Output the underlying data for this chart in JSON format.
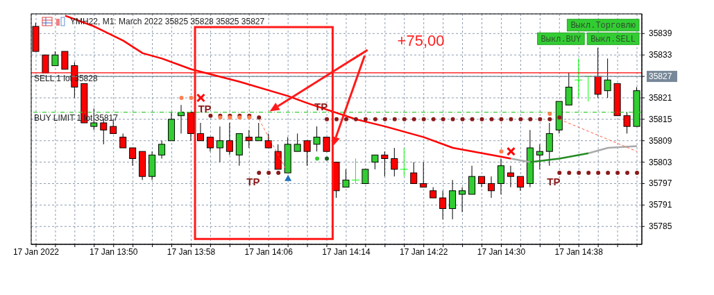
{
  "chart_data": {
    "type": "candlestick",
    "title": "YMH22, M1: March 2022 35825 35828 35825 35827",
    "x": [
      "2022-01-17T13:42",
      "2022-01-17T13:43",
      "2022-01-17T13:44",
      "2022-01-17T13:45",
      "2022-01-17T13:46",
      "2022-01-17T13:47",
      "2022-01-17T13:48",
      "2022-01-17T13:49",
      "2022-01-17T13:50",
      "2022-01-17T13:51",
      "2022-01-17T13:52",
      "2022-01-17T13:53",
      "2022-01-17T13:54",
      "2022-01-17T13:55",
      "2022-01-17T13:56",
      "2022-01-17T13:57",
      "2022-01-17T13:58",
      "2022-01-17T13:59",
      "2022-01-17T14:00",
      "2022-01-17T14:01",
      "2022-01-17T14:02",
      "2022-01-17T14:03",
      "2022-01-17T14:04",
      "2022-01-17T14:05",
      "2022-01-17T14:06",
      "2022-01-17T14:07",
      "2022-01-17T14:08",
      "2022-01-17T14:09",
      "2022-01-17T14:10",
      "2022-01-17T14:11",
      "2022-01-17T14:12",
      "2022-01-17T14:13",
      "2022-01-17T14:14",
      "2022-01-17T14:15",
      "2022-01-17T14:16",
      "2022-01-17T14:17",
      "2022-01-17T14:18",
      "2022-01-17T14:19",
      "2022-01-17T14:20",
      "2022-01-17T14:21",
      "2022-01-17T14:22",
      "2022-01-17T14:23",
      "2022-01-17T14:24",
      "2022-01-17T14:25",
      "2022-01-17T14:26",
      "2022-01-17T14:27",
      "2022-01-17T14:28",
      "2022-01-17T14:29",
      "2022-01-17T14:30",
      "2022-01-17T14:31",
      "2022-01-17T14:32",
      "2022-01-17T14:33",
      "2022-01-17T14:34",
      "2022-01-17T14:35",
      "2022-01-17T14:36",
      "2022-01-17T14:37",
      "2022-01-17T14:38",
      "2022-01-17T14:39",
      "2022-01-17T14:40",
      "2022-01-17T14:41",
      "2022-01-17T14:42",
      "2022-01-17T14:43",
      "2022-01-17T14:44"
    ],
    "ohlc": [
      [
        35841,
        35842,
        35834,
        35834
      ],
      [
        35833,
        35833,
        35828,
        35828
      ],
      [
        35830,
        35834,
        35830,
        35833
      ],
      [
        35834,
        35834,
        35829,
        35829
      ],
      [
        35830,
        35831,
        35821,
        35824
      ],
      [
        35825,
        35825,
        35814,
        35814
      ],
      [
        35813,
        35818,
        35812,
        35814
      ],
      [
        35814,
        35815,
        35808,
        35812
      ],
      [
        35813,
        35815,
        35811,
        35811
      ],
      [
        35810,
        35811,
        35807,
        35807
      ],
      [
        35807,
        35807,
        35802,
        35804
      ],
      [
        35806,
        35806,
        35798,
        35799
      ],
      [
        35799,
        35806,
        35798,
        35805
      ],
      [
        35805,
        35809,
        35804,
        35808
      ],
      [
        35809,
        35817,
        35809,
        35815
      ],
      [
        35816,
        35819,
        35811,
        35817
      ],
      [
        35817,
        35817,
        35809,
        35811
      ],
      [
        35811,
        35814,
        35809,
        35809
      ],
      [
        35810,
        35810,
        35806,
        35807
      ],
      [
        35807,
        35813,
        35803,
        35809
      ],
      [
        35809,
        35814,
        35805,
        35806
      ],
      [
        35805,
        35811,
        35802,
        35811
      ],
      [
        35810,
        35812,
        35807,
        35809
      ],
      [
        35809,
        35814,
        35809,
        35810
      ],
      [
        35809,
        35811,
        35807,
        35807
      ],
      [
        35806,
        35808,
        35801,
        35801
      ],
      [
        35800,
        35810,
        35800,
        35808
      ],
      [
        35806,
        35811,
        35806,
        35808
      ],
      [
        35809,
        35809,
        35802,
        35806
      ],
      [
        35808,
        35813,
        35806,
        35810
      ],
      [
        35810,
        35810,
        35806,
        35806
      ],
      [
        35803,
        35803,
        35793,
        35795
      ],
      [
        35796,
        35801,
        35796,
        35798
      ],
      [
        35798,
        35804,
        35797,
        35798
      ],
      [
        35797,
        35801,
        35797,
        35801
      ],
      [
        35803,
        35805,
        35801,
        35805
      ],
      [
        35805,
        35806,
        35799,
        35804
      ],
      [
        35804,
        35807,
        35799,
        35801
      ],
      [
        35801,
        35807,
        35799,
        35801
      ],
      [
        35800,
        35803,
        35797,
        35797
      ],
      [
        35797,
        35803,
        35796,
        35796
      ],
      [
        35795,
        35796,
        35793,
        35793
      ],
      [
        35793,
        35795,
        35787,
        35790
      ],
      [
        35790,
        35798,
        35787,
        35795
      ],
      [
        35794,
        35796,
        35789,
        35795
      ],
      [
        35794,
        35802,
        35794,
        35799
      ],
      [
        35799,
        35799,
        35796,
        35797
      ],
      [
        35797,
        35799,
        35793,
        35795
      ],
      [
        35797,
        35804,
        35794,
        35802
      ],
      [
        35800,
        35802,
        35796,
        35799
      ],
      [
        35799,
        35799,
        35795,
        35796
      ],
      [
        35797,
        35812,
        35796,
        35807
      ],
      [
        35805,
        35808,
        35801,
        35806
      ],
      [
        35806,
        35814,
        35802,
        35811
      ],
      [
        35812,
        35820,
        35811,
        35820
      ],
      [
        35819,
        35828,
        35819,
        35824
      ],
      [
        35826,
        35832,
        35821,
        35826
      ],
      [
        35827,
        35827,
        35820,
        35827
      ],
      [
        35827,
        35835,
        35821,
        35822
      ],
      [
        35823,
        35832,
        35821,
        35826
      ],
      [
        35825,
        35825,
        35816,
        35816
      ],
      [
        35816,
        35817,
        35811,
        35813
      ],
      [
        35813,
        35824,
        35813,
        35823
      ]
    ],
    "colors": [
      "#ff0000",
      "#ff0000",
      "#32cd32",
      "#ff0000",
      "#ff0000",
      "#ff0000",
      "#32cd32",
      "#ff0000",
      "#ff0000",
      "#ff0000",
      "#ff0000",
      "#ff0000",
      "#32cd32",
      "#32cd32",
      "#32cd32",
      "#32cd32",
      "#ff0000",
      "#ff0000",
      "#ff0000",
      "#32cd32",
      "#ff0000",
      "#32cd32",
      "#ff0000",
      "#32cd32",
      "#ff0000",
      "#ff0000",
      "#32cd32",
      "#32cd32",
      "#ff0000",
      "#32cd32",
      "#ff0000",
      "#ff0000",
      "#32cd32",
      "#00ff00",
      "#32cd32",
      "#32cd32",
      "#ff0000",
      "#ff0000",
      "#00ff00",
      "#ff0000",
      "#ff0000",
      "#ff0000",
      "#ff0000",
      "#32cd32",
      "#32cd32",
      "#32cd32",
      "#ff0000",
      "#ff0000",
      "#32cd32",
      "#ff0000",
      "#ff0000",
      "#32cd32",
      "#32cd32",
      "#32cd32",
      "#32cd32",
      "#32cd32",
      "#00ff00",
      "#00ff00",
      "#ff0000",
      "#32cd32",
      "#ff0000",
      "#ff0000",
      "#32cd32"
    ],
    "series": [
      {
        "type": "line",
        "color": "#ff0000",
        "line_style": "solid",
        "x": [
          "2022-01-17T13:45",
          "2022-01-17T13:48",
          "2022-01-17T13:51",
          "2022-01-17T13:53",
          "2022-01-17T13:55",
          "2022-01-17T13:58",
          "2022-01-17T14:03",
          "2022-01-17T14:08",
          "2022-01-17T14:10",
          "2022-01-17T14:15",
          "2022-01-17T14:18",
          "2022-01-17T14:22",
          "2022-01-17T14:25",
          "2022-01-17T14:29",
          "2022-01-17T14:31"
        ],
        "values": [
          35844,
          35841,
          35837,
          35833.5,
          35832,
          35829,
          35825.5,
          35821.5,
          35819.5,
          35815,
          35813,
          35810,
          35807,
          35805,
          35804
        ]
      },
      {
        "type": "line",
        "color": "#a9a9a9",
        "line_style": "solid",
        "x": [
          "2022-01-17T14:31",
          "2022-01-17T14:33"
        ],
        "values": [
          35804,
          35803
        ]
      },
      {
        "type": "line",
        "color": "#228b22",
        "line_style": "solid",
        "x": [
          "2022-01-17T14:33",
          "2022-01-17T14:36",
          "2022-01-17T14:39"
        ],
        "values": [
          35803,
          35804,
          35805.5
        ]
      },
      {
        "type": "line",
        "color": "#a9a9a9",
        "line_style": "solid",
        "x": [
          "2022-01-17T14:39",
          "2022-01-17T14:41",
          "2022-01-17T14:44"
        ],
        "values": [
          35805.5,
          35807,
          35807.5
        ]
      },
      {
        "type": "line",
        "color": "#ff6347",
        "line_style": "dashed",
        "x": [
          "2022-01-17T14:05",
          "2022-01-17T14:08"
        ],
        "values": [
          35815,
          35800
        ]
      },
      {
        "type": "line",
        "color": "#ff6347",
        "line_style": "dashed",
        "x": [
          "2022-01-17T14:36",
          "2022-01-17T14:44"
        ],
        "values": [
          35815,
          35806
        ]
      },
      {
        "type": "scatter",
        "color": "#8b1a1a",
        "marker": "circle",
        "x": [
          "2022-01-17T14:00",
          "2022-01-17T14:01",
          "2022-01-17T14:02",
          "2022-01-17T14:03",
          "2022-01-17T14:04",
          "2022-01-17T14:05",
          "2022-01-17T14:06",
          "2022-01-17T14:07",
          "2022-01-17T14:12",
          "2022-01-17T14:13",
          "2022-01-17T14:14",
          "2022-01-17T14:15",
          "2022-01-17T14:16",
          "2022-01-17T14:17",
          "2022-01-17T14:18",
          "2022-01-17T14:19",
          "2022-01-17T14:20",
          "2022-01-17T14:21",
          "2022-01-17T14:22",
          "2022-01-17T14:23",
          "2022-01-17T14:24",
          "2022-01-17T14:25",
          "2022-01-17T14:26",
          "2022-01-17T14:27",
          "2022-01-17T14:28",
          "2022-01-17T14:29",
          "2022-01-17T14:30",
          "2022-01-17T14:31",
          "2022-01-17T14:32",
          "2022-01-17T14:33",
          "2022-01-17T14:34",
          "2022-01-17T14:35",
          "2022-01-17T14:36",
          "2022-01-17T14:37",
          "2022-01-17T14:38",
          "2022-01-17T14:39",
          "2022-01-17T14:40",
          "2022-01-17T14:41",
          "2022-01-17T14:42",
          "2022-01-17T14:43",
          "2022-01-17T14:44"
        ],
        "values": [
          35816,
          35816,
          35816,
          35816,
          35816,
          35800,
          35800,
          35800,
          35815,
          35815,
          35815,
          35815,
          35815,
          35815,
          35815,
          35815,
          35815,
          35815,
          35815,
          35815,
          35815,
          35815,
          35815,
          35815,
          35815,
          35815,
          35815,
          35815,
          35815,
          35815,
          35815,
          35815,
          35800,
          35800,
          35800,
          35800,
          35800,
          35800,
          35800,
          35800,
          35800
        ]
      },
      {
        "type": "scatter",
        "color": "#ff7f50",
        "marker": "circle",
        "x": [
          "2022-01-17T13:57",
          "2022-01-17T13:58",
          "2022-01-17T14:01",
          "2022-01-17T14:02",
          "2022-01-17T14:03",
          "2022-01-17T14:04",
          "2022-01-17T14:30",
          "2022-01-17T14:35"
        ],
        "values": [
          35821,
          35821,
          35815.5,
          35815.5,
          35815.5,
          35815.5,
          35806,
          35816.5
        ]
      },
      {
        "type": "scatter",
        "color": "#ff0000",
        "marker": "cross",
        "x": [
          "2022-01-17T13:59",
          "2022-01-17T14:31"
        ],
        "values": [
          35821,
          35806
        ]
      },
      {
        "type": "scatter",
        "color": "#32cd32",
        "marker": "circle",
        "x": [
          "2022-01-17T14:11"
        ],
        "values": [
          35804
        ]
      },
      {
        "type": "scatter",
        "color": "#8b1a1a",
        "marker": "circle",
        "x": [
          "2022-01-17T14:05",
          "2022-01-17T14:36"
        ],
        "values": [
          35815.5,
          35815.5
        ]
      },
      {
        "type": "scatter",
        "color": "#1a5e1a",
        "marker": "circle",
        "x": [
          "2022-01-17T14:12"
        ],
        "values": [
          35804
        ]
      },
      {
        "type": "scatter",
        "color": "#1e6fc0",
        "marker": "triangle",
        "x": [
          "2022-01-17T14:08"
        ],
        "values": [
          35798.5
        ]
      }
    ],
    "xlim": [
      "2022-01-17T13:41:30",
      "2022-01-17T14:44:30"
    ],
    "xticks": [
      {
        "value": "2022-01-17T13:42",
        "label": "17 Jan 2022"
      },
      {
        "value": "2022-01-17T13:44",
        "label": null
      },
      {
        "value": "2022-01-17T13:46",
        "label": null
      },
      {
        "value": "2022-01-17T13:48",
        "label": null
      },
      {
        "value": "2022-01-17T13:50",
        "label": "17 Jan 13:50"
      },
      {
        "value": "2022-01-17T13:52",
        "label": null
      },
      {
        "value": "2022-01-17T13:54",
        "label": null
      },
      {
        "value": "2022-01-17T13:56",
        "label": null
      },
      {
        "value": "2022-01-17T13:58",
        "label": "17 Jan 13:58"
      },
      {
        "value": "2022-01-17T14:00",
        "label": null
      },
      {
        "value": "2022-01-17T14:02",
        "label": null
      },
      {
        "value": "2022-01-17T14:04",
        "label": null
      },
      {
        "value": "2022-01-17T14:06",
        "label": "17 Jan 14:06"
      },
      {
        "value": "2022-01-17T14:08",
        "label": null
      },
      {
        "value": "2022-01-17T14:10",
        "label": null
      },
      {
        "value": "2022-01-17T14:12",
        "label": null
      },
      {
        "value": "2022-01-17T14:14",
        "label": "17 Jan 14:14"
      },
      {
        "value": "2022-01-17T14:16",
        "label": null
      },
      {
        "value": "2022-01-17T14:18",
        "label": null
      },
      {
        "value": "2022-01-17T14:20",
        "label": null
      },
      {
        "value": "2022-01-17T14:22",
        "label": "17 Jan 14:22"
      },
      {
        "value": "2022-01-17T14:24",
        "label": null
      },
      {
        "value": "2022-01-17T14:26",
        "label": null
      },
      {
        "value": "2022-01-17T14:28",
        "label": null
      },
      {
        "value": "2022-01-17T14:30",
        "label": "17 Jan 14:30"
      },
      {
        "value": "2022-01-17T14:32",
        "label": null
      },
      {
        "value": "2022-01-17T14:34",
        "label": null
      },
      {
        "value": "2022-01-17T14:36",
        "label": null
      },
      {
        "value": "2022-01-17T14:38",
        "label": "17 Jan 14:38"
      },
      {
        "value": "2022-01-17T14:40",
        "label": null
      },
      {
        "value": "2022-01-17T14:42",
        "label": null
      },
      {
        "value": "2022-01-17T14:44",
        "label": null
      }
    ],
    "ylim": [
      35780,
      35844.5
    ],
    "yticks": [
      35785,
      35791,
      35797,
      35803,
      35809,
      35815,
      35821,
      35827,
      35833,
      35839
    ],
    "grid": true,
    "ref_lines": [
      {
        "axis": "y",
        "value": 35828,
        "label": "SELL 1 lot 35828",
        "color": "#ff0000"
      },
      {
        "axis": "y",
        "value": 35827,
        "color": "#778899"
      },
      {
        "axis": "y",
        "value": 35817,
        "label": "BUY LIMIT 1 lot 35817",
        "color": "#32cd32",
        "line_style": "dashed"
      }
    ],
    "annotations": [
      "+75,00",
      "Выкл.Торговлю",
      "Выкл.BUY",
      "Выкл.SELL",
      "TP",
      "TP",
      "TP",
      "TP"
    ]
  }
}
